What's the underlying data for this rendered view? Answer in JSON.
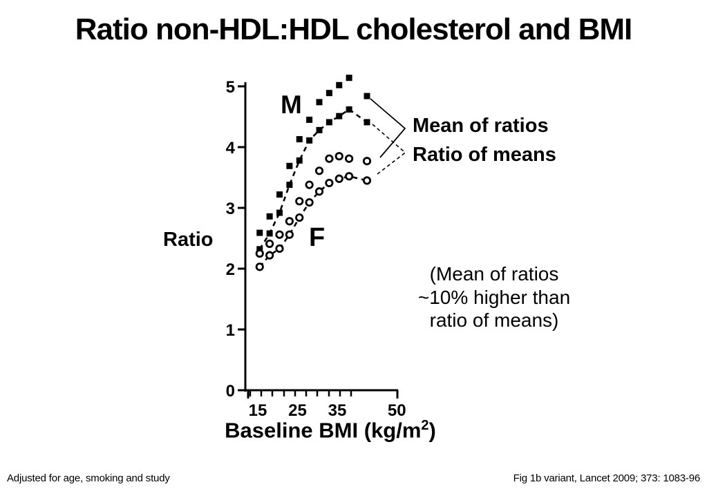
{
  "slide": {
    "title": "Ratio non-HDL:HDL cholesterol and BMI",
    "footer_left": "Adjusted for age, smoking and study",
    "footer_right": "Fig 1b variant, Lancet 2009; 373: 1083-96",
    "background_color": "#ffffff",
    "ink_color": "#000000"
  },
  "legend": {
    "mean_of_ratios": "Mean of ratios",
    "ratio_of_means": "Ratio of means"
  },
  "annotation": {
    "line1": "(Mean of ratios",
    "line2": "~10% higher than",
    "line3": "ratio of means)"
  },
  "labels": {
    "male": "M",
    "female": "F",
    "ylabel": "Ratio",
    "xlabel_prefix": "Baseline BMI (kg/m",
    "xlabel_sup": "2",
    "xlabel_suffix": ")"
  },
  "chart_data": {
    "type": "scatter",
    "title": "Ratio non-HDL:HDL cholesterol and BMI",
    "xlabel": "Baseline BMI (kg/m2)",
    "ylabel": "Ratio",
    "xlim": [
      14,
      51
    ],
    "ylim": [
      0,
      5.3
    ],
    "grid": false,
    "legend_position": "right",
    "x_tick_values": [
      15,
      25,
      35,
      50
    ],
    "x_tick_labels": [
      "15",
      "25",
      "35",
      "50"
    ],
    "y_tick_values": [
      0,
      1,
      2,
      3,
      4,
      5
    ],
    "y_tick_labels": [
      "0",
      "1",
      "2",
      "3",
      "4",
      "5"
    ],
    "marker_color": "#000000",
    "categories_bmi": [
      16,
      18.5,
      21,
      23.5,
      26,
      28.5,
      31,
      33.5,
      36,
      38.5,
      43
    ],
    "series": [
      {
        "name": "men-mean-of-ratios",
        "group": "M",
        "legend": "Mean of ratios",
        "marker": "filled-square",
        "line": "none",
        "values": [
          2.59,
          2.86,
          3.22,
          3.69,
          4.13,
          4.45,
          4.74,
          4.89,
          5.02,
          5.14,
          4.84
        ]
      },
      {
        "name": "men-ratio-of-means",
        "group": "M",
        "legend": "Ratio of means",
        "marker": "filled-square",
        "line": "dashed",
        "values": [
          2.32,
          2.58,
          2.92,
          3.38,
          3.78,
          4.11,
          4.28,
          4.41,
          4.51,
          4.62,
          4.41
        ]
      },
      {
        "name": "women-mean-of-ratios",
        "group": "F",
        "legend": "Mean of ratios",
        "marker": "open-circle",
        "line": "none",
        "values": [
          2.25,
          2.41,
          2.56,
          2.78,
          3.11,
          3.38,
          3.61,
          3.81,
          3.85,
          3.81,
          3.77
        ]
      },
      {
        "name": "women-ratio-of-means",
        "group": "F",
        "legend": "Ratio of means",
        "marker": "open-circle",
        "line": "dashed",
        "values": [
          2.03,
          2.22,
          2.33,
          2.56,
          2.84,
          3.09,
          3.27,
          3.41,
          3.48,
          3.52,
          3.45
        ]
      }
    ]
  }
}
